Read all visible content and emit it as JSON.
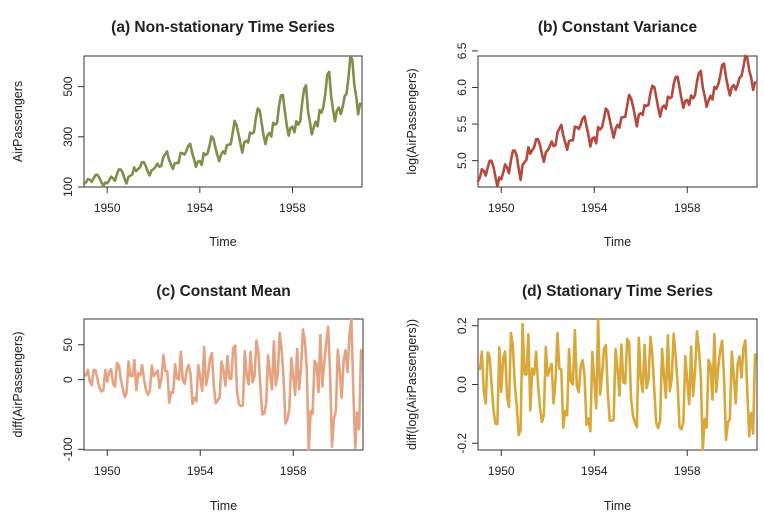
{
  "chart_data": [
    {
      "type": "line",
      "title": "(a) Non-stationary Time Series",
      "xlabel": "Time",
      "ylabel": "AirPassengers",
      "xlim": [
        1949,
        1961
      ],
      "ylim": [
        100,
        622
      ],
      "x_ticks": [
        1950,
        1954,
        1958
      ],
      "y_ticks": [
        100,
        300,
        500
      ],
      "color": "#7d9149",
      "series": [
        {
          "values": [
            112,
            118,
            132,
            129,
            121,
            135,
            148,
            148,
            136,
            119,
            104,
            118,
            115,
            126,
            141,
            135,
            125,
            149,
            170,
            170,
            158,
            133,
            114,
            140,
            145,
            150,
            178,
            163,
            172,
            178,
            199,
            199,
            184,
            162,
            146,
            166,
            171,
            180,
            193,
            181,
            183,
            218,
            230,
            242,
            209,
            191,
            172,
            194,
            196,
            196,
            236,
            235,
            229,
            243,
            264,
            272,
            237,
            211,
            180,
            201,
            204,
            188,
            235,
            227,
            234,
            264,
            302,
            293,
            259,
            229,
            203,
            229,
            242,
            233,
            267,
            269,
            270,
            315,
            364,
            347,
            312,
            274,
            237,
            278,
            284,
            277,
            317,
            313,
            318,
            374,
            413,
            405,
            355,
            306,
            271,
            306,
            315,
            301,
            356,
            348,
            355,
            422,
            465,
            467,
            404,
            347,
            305,
            336,
            340,
            318,
            362,
            348,
            363,
            435,
            491,
            505,
            404,
            359,
            310,
            337,
            360,
            342,
            406,
            396,
            420,
            472,
            548,
            559,
            463,
            407,
            362,
            405,
            417,
            391,
            419,
            461,
            472,
            535,
            622,
            606,
            508,
            461,
            390,
            432
          ]
        }
      ]
    },
    {
      "type": "line",
      "title": "(b) Constant Variance",
      "xlabel": "Time",
      "ylabel": "log(AirPassengers)",
      "xlim": [
        1949,
        1961
      ],
      "ylim": [
        4.64,
        6.43
      ],
      "x_ticks": [
        1950,
        1954,
        1958
      ],
      "y_ticks": [
        "5.0",
        "5.5",
        "6.0",
        "6.5"
      ],
      "color": "#b5493e",
      "transform": "log"
    },
    {
      "type": "line",
      "title": "(c) Constant Mean",
      "xlabel": "Time",
      "ylabel": "diff(AirPassengers)",
      "xlim": [
        1949,
        1961
      ],
      "ylim": [
        -101,
        87
      ],
      "x_ticks": [
        1950,
        1954,
        1958
      ],
      "y_ticks": [
        -100,
        0,
        50
      ],
      "color": "#e4a383",
      "transform": "diff"
    },
    {
      "type": "line",
      "title": "(d) Stationary Time Series",
      "xlabel": "Time",
      "ylabel": "diff(log(AirPassengers))",
      "xlim": [
        1949,
        1961
      ],
      "ylim": [
        -0.223,
        0.223
      ],
      "x_ticks": [
        1950,
        1954,
        1958
      ],
      "y_ticks": [
        "-0.2",
        "0.0",
        "0.2"
      ],
      "color": "#d8a93a",
      "transform": "difflog"
    }
  ]
}
